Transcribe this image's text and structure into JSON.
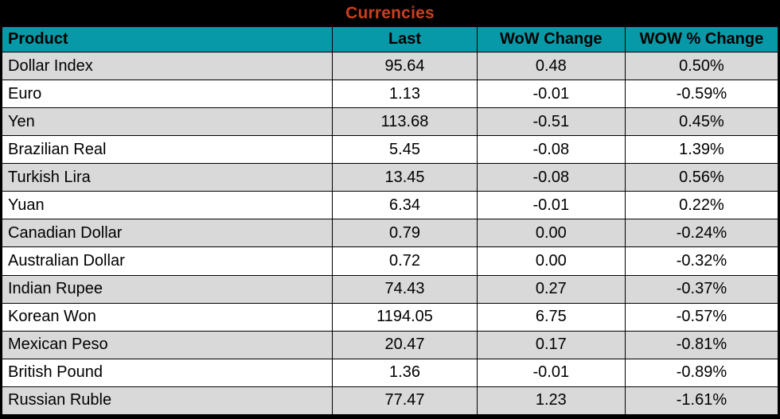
{
  "title": "Currencies",
  "colors": {
    "title_text": "#c8401f",
    "title_background": "#000000",
    "header_background": "#0799a8",
    "row_alt_background": "#d9d9d9",
    "row_background": "#ffffff",
    "border": "#000000"
  },
  "columns": [
    {
      "key": "product",
      "label": "Product"
    },
    {
      "key": "last",
      "label": "Last"
    },
    {
      "key": "wow_change",
      "label": "WoW Change"
    },
    {
      "key": "wow_pct_change",
      "label": "WOW % Change"
    }
  ],
  "chart_data": {
    "type": "table",
    "title": "Currencies",
    "categories": [
      "Product",
      "Last",
      "WoW Change",
      "WOW % Change"
    ],
    "rows": [
      {
        "product": "Dollar Index",
        "last": "95.64",
        "wow_change": "0.48",
        "wow_pct_change": "0.50%"
      },
      {
        "product": "Euro",
        "last": "1.13",
        "wow_change": "-0.01",
        "wow_pct_change": "-0.59%"
      },
      {
        "product": "Yen",
        "last": "113.68",
        "wow_change": "-0.51",
        "wow_pct_change": "0.45%"
      },
      {
        "product": "Brazilian Real",
        "last": "5.45",
        "wow_change": "-0.08",
        "wow_pct_change": "1.39%"
      },
      {
        "product": "Turkish Lira",
        "last": "13.45",
        "wow_change": "-0.08",
        "wow_pct_change": "0.56%"
      },
      {
        "product": "Yuan",
        "last": "6.34",
        "wow_change": "-0.01",
        "wow_pct_change": "0.22%"
      },
      {
        "product": "Canadian Dollar",
        "last": "0.79",
        "wow_change": "0.00",
        "wow_pct_change": "-0.24%"
      },
      {
        "product": "Australian Dollar",
        "last": "0.72",
        "wow_change": "0.00",
        "wow_pct_change": "-0.32%"
      },
      {
        "product": "Indian Rupee",
        "last": "74.43",
        "wow_change": "0.27",
        "wow_pct_change": "-0.37%"
      },
      {
        "product": "Korean Won",
        "last": "1194.05",
        "wow_change": "6.75",
        "wow_pct_change": "-0.57%"
      },
      {
        "product": "Mexican Peso",
        "last": "20.47",
        "wow_change": "0.17",
        "wow_pct_change": "-0.81%"
      },
      {
        "product": "British Pound",
        "last": "1.36",
        "wow_change": "-0.01",
        "wow_pct_change": "-0.89%"
      },
      {
        "product": "Russian Ruble",
        "last": "77.47",
        "wow_change": "1.23",
        "wow_pct_change": "-1.61%"
      }
    ]
  }
}
